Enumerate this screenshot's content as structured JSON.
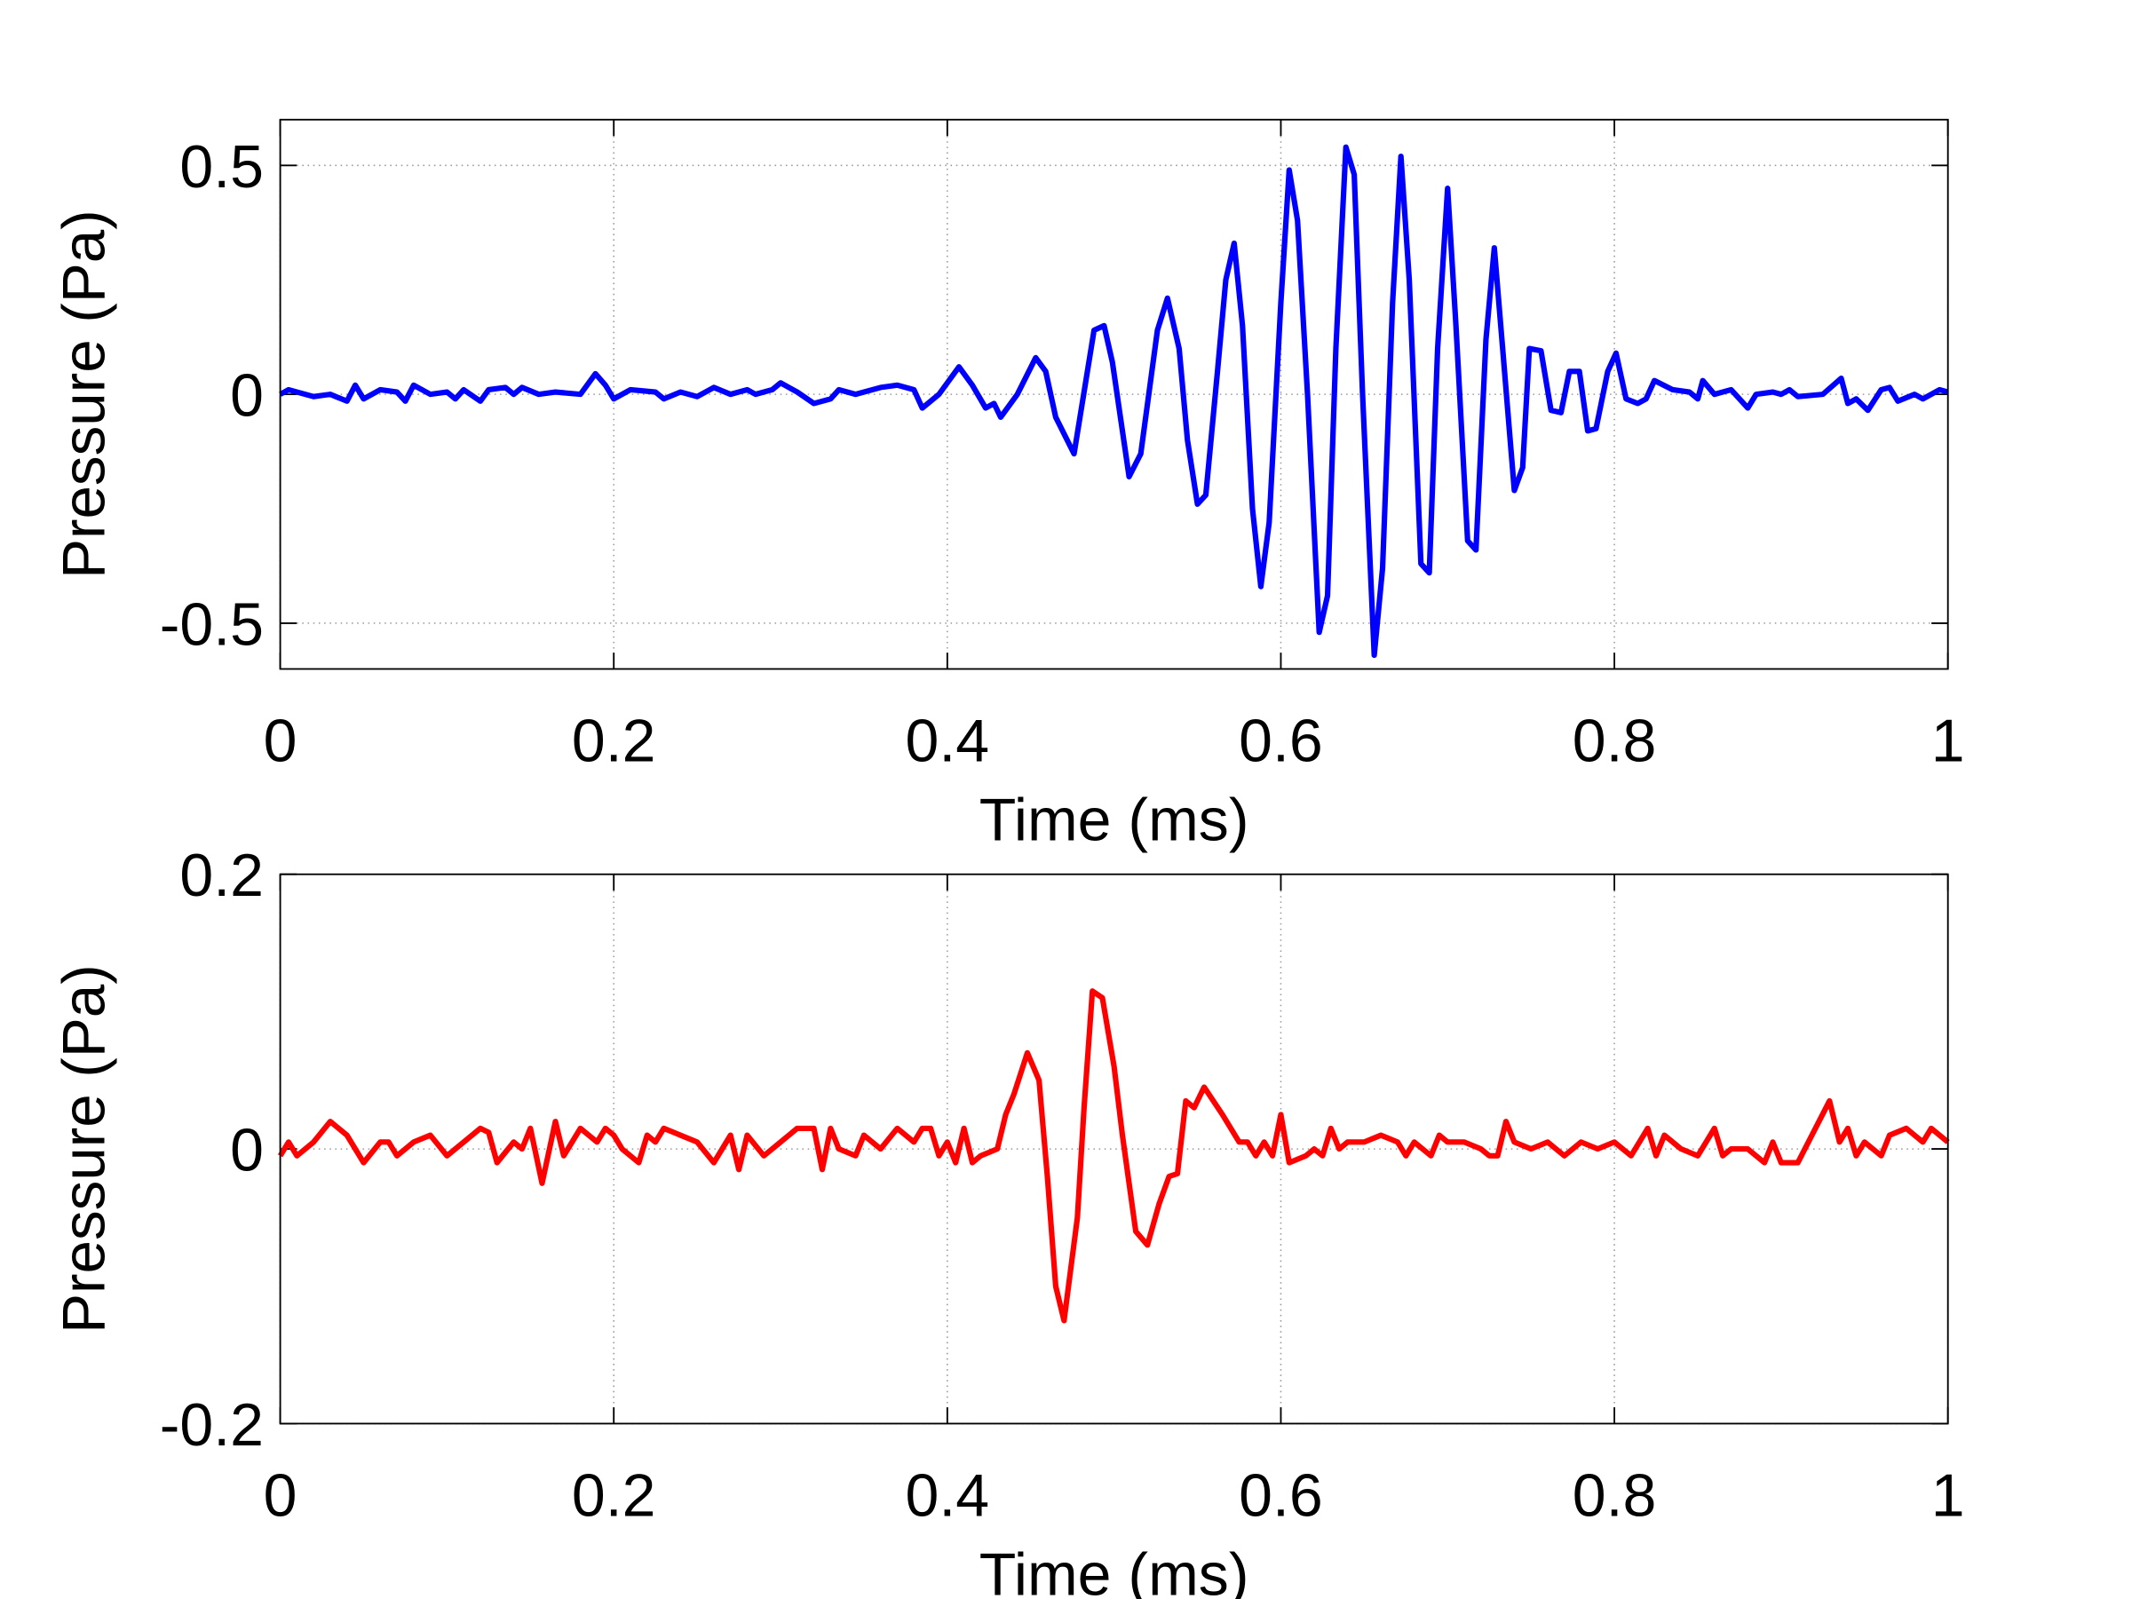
{
  "chart_data": [
    {
      "type": "line",
      "x_label": "Time (ms)",
      "y_label": "Pressure (Pa)",
      "xlim": [
        0,
        1
      ],
      "xticks": [
        0,
        0.2,
        0.4,
        0.6,
        0.8,
        1
      ],
      "ylim": [
        -0.6,
        0.6
      ],
      "yticks": [
        -0.5,
        0,
        0.5
      ],
      "grid": true,
      "x": [
        0,
        0.005,
        0.01,
        0.02,
        0.03,
        0.04,
        0.045,
        0.05,
        0.06,
        0.07,
        0.075,
        0.08,
        0.09,
        0.1,
        0.105,
        0.11,
        0.12,
        0.125,
        0.135,
        0.14,
        0.145,
        0.155,
        0.165,
        0.18,
        0.189,
        0.195,
        0.2,
        0.21,
        0.225,
        0.23,
        0.24,
        0.25,
        0.26,
        0.27,
        0.28,
        0.285,
        0.295,
        0.3,
        0.31,
        0.32,
        0.33,
        0.335,
        0.345,
        0.36,
        0.37,
        0.38,
        0.385,
        0.395,
        0.407,
        0.415,
        0.423,
        0.428,
        0.432,
        0.442,
        0.453,
        0.459,
        0.465,
        0.476,
        0.488,
        0.494,
        0.499,
        0.509,
        0.516,
        0.526,
        0.532,
        0.539,
        0.544,
        0.55,
        0.555,
        0.562,
        0.567,
        0.572,
        0.577,
        0.583,
        0.588,
        0.593,
        0.6,
        0.605,
        0.61,
        0.616,
        0.623,
        0.628,
        0.633,
        0.639,
        0.644,
        0.649,
        0.656,
        0.661,
        0.667,
        0.672,
        0.677,
        0.684,
        0.689,
        0.694,
        0.7,
        0.705,
        0.712,
        0.717,
        0.723,
        0.728,
        0.733,
        0.74,
        0.745,
        0.749,
        0.756,
        0.762,
        0.768,
        0.773,
        0.779,
        0.784,
        0.789,
        0.796,
        0.801,
        0.807,
        0.814,
        0.819,
        0.824,
        0.835,
        0.845,
        0.85,
        0.853,
        0.86,
        0.87,
        0.88,
        0.885,
        0.895,
        0.9,
        0.905,
        0.91,
        0.925,
        0.936,
        0.94,
        0.945,
        0.952,
        0.96,
        0.965,
        0.97,
        0.98,
        0.985,
        0.995,
        1
      ],
      "series": [
        {
          "color": "#0000ff",
          "values": [
            0,
            0.01,
            0.005,
            -0.005,
            0,
            -0.015,
            0.02,
            -0.01,
            0.01,
            0.005,
            -0.015,
            0.02,
            0,
            0.005,
            -0.01,
            0.01,
            -0.015,
            0.01,
            0.015,
            0,
            0.015,
            0,
            0.005,
            0,
            0.045,
            0.02,
            -0.01,
            0.01,
            0.005,
            -0.01,
            0.005,
            -0.005,
            0.015,
            0,
            0.01,
            0,
            0.01,
            0.025,
            0.005,
            -0.02,
            -0.01,
            0.01,
            0,
            0.015,
            0.02,
            0.01,
            -0.03,
            0,
            0.06,
            0.02,
            -0.03,
            -0.02,
            -0.05,
            0,
            0.08,
            0.05,
            -0.05,
            -0.13,
            0.14,
            0.15,
            0.07,
            -0.18,
            -0.13,
            0.14,
            0.21,
            0.1,
            -0.1,
            -0.24,
            -0.22,
            0.05,
            0.25,
            0.33,
            0.15,
            -0.25,
            -0.42,
            -0.28,
            0.2,
            0.49,
            0.38,
            0,
            -0.52,
            -0.44,
            0.1,
            0.54,
            0.48,
            0,
            -0.57,
            -0.38,
            0.2,
            0.52,
            0.25,
            -0.37,
            -0.39,
            0.1,
            0.45,
            0.15,
            -0.32,
            -0.34,
            0.12,
            0.32,
            0.1,
            -0.21,
            -0.16,
            0.1,
            0.095,
            -0.035,
            -0.04,
            0.05,
            0.05,
            -0.08,
            -0.075,
            0.05,
            0.09,
            -0.01,
            -0.02,
            -0.01,
            0.03,
            0.01,
            0.005,
            -0.01,
            0.03,
            0,
            0.01,
            -0.03,
            0,
            0.005,
            0,
            0.01,
            -0.005,
            0,
            0.035,
            -0.02,
            -0.01,
            -0.035,
            0.01,
            0.015,
            -0.015,
            0,
            -0.01,
            0.01,
            0.005
          ]
        }
      ]
    },
    {
      "type": "line",
      "x_label": "Time (ms)",
      "y_label": "Pressure (Pa)",
      "xlim": [
        0,
        1
      ],
      "xticks": [
        0,
        0.2,
        0.4,
        0.6,
        0.8,
        1
      ],
      "ylim": [
        -0.2,
        0.2
      ],
      "yticks": [
        -0.2,
        0,
        0.2
      ],
      "grid": true,
      "x": [
        0,
        0.005,
        0.01,
        0.02,
        0.03,
        0.04,
        0.05,
        0.06,
        0.065,
        0.07,
        0.08,
        0.09,
        0.1,
        0.11,
        0.12,
        0.125,
        0.13,
        0.14,
        0.145,
        0.15,
        0.157,
        0.165,
        0.17,
        0.18,
        0.19,
        0.195,
        0.2,
        0.205,
        0.215,
        0.22,
        0.225,
        0.23,
        0.24,
        0.25,
        0.26,
        0.27,
        0.275,
        0.28,
        0.29,
        0.3,
        0.31,
        0.32,
        0.325,
        0.33,
        0.335,
        0.345,
        0.35,
        0.36,
        0.37,
        0.38,
        0.385,
        0.39,
        0.395,
        0.4,
        0.405,
        0.41,
        0.415,
        0.42,
        0.43,
        0.435,
        0.44,
        0.448,
        0.455,
        0.46,
        0.465,
        0.47,
        0.478,
        0.482,
        0.487,
        0.493,
        0.5,
        0.505,
        0.513,
        0.52,
        0.527,
        0.533,
        0.538,
        0.543,
        0.548,
        0.554,
        0.565,
        0.575,
        0.58,
        0.585,
        0.59,
        0.595,
        0.6,
        0.605,
        0.615,
        0.62,
        0.625,
        0.63,
        0.635,
        0.64,
        0.65,
        0.66,
        0.67,
        0.675,
        0.68,
        0.69,
        0.695,
        0.7,
        0.71,
        0.72,
        0.725,
        0.73,
        0.735,
        0.74,
        0.75,
        0.76,
        0.77,
        0.78,
        0.79,
        0.8,
        0.81,
        0.82,
        0.825,
        0.83,
        0.84,
        0.85,
        0.86,
        0.865,
        0.87,
        0.88,
        0.89,
        0.895,
        0.9,
        0.91,
        0.929,
        0.935,
        0.94,
        0.945,
        0.95,
        0.96,
        0.965,
        0.975,
        0.985,
        0.99,
        1
      ],
      "series": [
        {
          "color": "#ff0000",
          "values": [
            -0.005,
            0.005,
            -0.005,
            0.005,
            0.02,
            0.01,
            -0.01,
            0.005,
            0.005,
            -0.005,
            0.005,
            0.01,
            -0.005,
            0.005,
            0.015,
            0.012,
            -0.01,
            0.005,
            0,
            0.015,
            -0.025,
            0.02,
            -0.005,
            0.015,
            0.005,
            0.015,
            0.01,
            0,
            -0.01,
            0.01,
            0.005,
            0.015,
            0.01,
            0.005,
            -0.01,
            0.01,
            -0.015,
            0.01,
            -0.005,
            0.005,
            0.015,
            0.015,
            -0.015,
            0.015,
            0,
            -0.005,
            0.01,
            0,
            0.015,
            0.005,
            0.015,
            0.015,
            -0.005,
            0.005,
            -0.01,
            0.015,
            -0.01,
            -0.005,
            0,
            0.025,
            0.04,
            0.07,
            0.05,
            -0.02,
            -0.1,
            -0.125,
            -0.05,
            0.03,
            0.115,
            0.11,
            0.06,
            0.01,
            -0.06,
            -0.07,
            -0.04,
            -0.02,
            -0.018,
            0.035,
            0.03,
            0.045,
            0.025,
            0.005,
            0.005,
            -0.005,
            0.005,
            -0.005,
            0.025,
            -0.01,
            -0.005,
            0,
            -0.005,
            0.015,
            0,
            0.005,
            0.005,
            0.01,
            0.005,
            -0.005,
            0.005,
            -0.005,
            0.01,
            0.005,
            0.005,
            0,
            -0.005,
            -0.005,
            0.02,
            0.005,
            0,
            0.005,
            -0.005,
            0.005,
            0,
            0.005,
            -0.005,
            0.015,
            -0.005,
            0.01,
            0,
            -0.005,
            0.015,
            -0.005,
            0,
            0,
            -0.01,
            0.005,
            -0.01,
            -0.01,
            0.035,
            0.005,
            0.015,
            -0.005,
            0.005,
            -0.005,
            0.01,
            0.015,
            0.005,
            0.015,
            0.005
          ]
        }
      ]
    }
  ]
}
